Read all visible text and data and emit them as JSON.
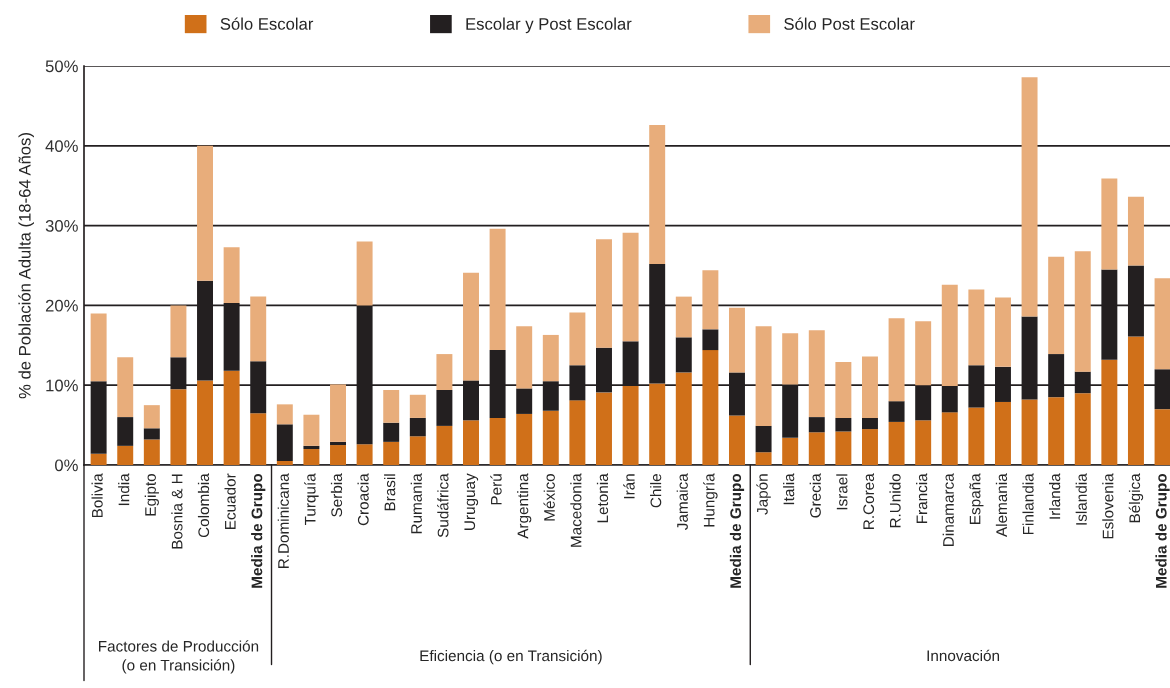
{
  "chart_data": {
    "type": "bar",
    "stacked": true,
    "ylabel": "% de Población Adulta (18-64 Años)",
    "categories": [
      "Bolivia",
      "India",
      "Egipto",
      "Bosnia & H",
      "Colombia",
      "Ecuador",
      "Media de Grupo",
      "R.Dominicana",
      "Turquía",
      "Serbia",
      "Croacia",
      "Brasil",
      "Rumania",
      "Sudáfrica",
      "Uruguay",
      "Perú",
      "Argentina",
      "México",
      "Macedonia",
      "Letonia",
      "Irán",
      "Chile",
      "Jamaica",
      "Hungría",
      "Media de Grupo",
      "Japón",
      "Italia",
      "Grecia",
      "Israel",
      "R.Corea",
      "R.Unido",
      "Francia",
      "Dinamarca",
      "España",
      "Alemania",
      "Finlandia",
      "Irlanda",
      "Islandia",
      "Eslovenia",
      "Bélgica",
      "Media de Grupo"
    ],
    "series": [
      {
        "name": "Sólo Escolar",
        "color": "#d07019",
        "values": [
          1.4,
          2.4,
          3.2,
          9.5,
          10.6,
          11.8,
          6.5,
          0.5,
          2.0,
          2.5,
          2.6,
          2.9,
          3.6,
          4.9,
          5.6,
          5.9,
          6.4,
          6.8,
          8.1,
          9.1,
          9.9,
          10.2,
          11.6,
          14.4,
          6.2,
          1.6,
          3.4,
          4.1,
          4.2,
          4.5,
          5.4,
          5.6,
          6.6,
          7.2,
          7.9,
          8.2,
          8.5,
          9.0,
          13.2,
          16.1,
          7.0
        ]
      },
      {
        "name": "Escolar y Post Escolar",
        "color": "#231f20",
        "values": [
          9.1,
          3.6,
          1.4,
          4.0,
          12.5,
          8.5,
          6.5,
          4.6,
          0.4,
          0.4,
          17.4,
          2.4,
          2.3,
          4.5,
          5.0,
          8.5,
          3.2,
          3.7,
          4.4,
          5.6,
          5.6,
          15.0,
          4.4,
          2.6,
          5.4,
          3.3,
          6.7,
          1.9,
          1.7,
          1.4,
          2.6,
          4.4,
          3.3,
          5.3,
          4.4,
          10.4,
          5.4,
          2.7,
          11.3,
          8.9,
          5.0
        ]
      },
      {
        "name": "Sólo Post Escolar",
        "color": "#e8ad7b",
        "values": [
          8.5,
          7.5,
          2.9,
          6.5,
          16.9,
          7.0,
          8.1,
          2.5,
          3.9,
          7.2,
          8.0,
          4.1,
          2.9,
          4.5,
          13.5,
          15.2,
          7.8,
          5.8,
          6.6,
          13.6,
          13.6,
          17.4,
          5.1,
          7.4,
          8.1,
          12.5,
          6.4,
          10.9,
          7.0,
          7.7,
          10.4,
          8.0,
          12.7,
          9.5,
          8.7,
          30.0,
          12.2,
          15.1,
          11.4,
          8.6,
          11.4
        ]
      }
    ],
    "ylim": [
      0,
      50
    ],
    "yticks": [
      {
        "value": 0,
        "label": "0%"
      },
      {
        "value": 10,
        "label": "10%"
      },
      {
        "value": 20,
        "label": "20%"
      },
      {
        "value": 30,
        "label": "30%"
      },
      {
        "value": 40,
        "label": "40%"
      },
      {
        "value": 50,
        "label": "50%"
      }
    ],
    "grid": "y",
    "legend": "top",
    "annotations": [
      "Factores de Producción\n(o en Transición)",
      "Eficiencia (o en Transición)",
      "Innovación"
    ]
  }
}
